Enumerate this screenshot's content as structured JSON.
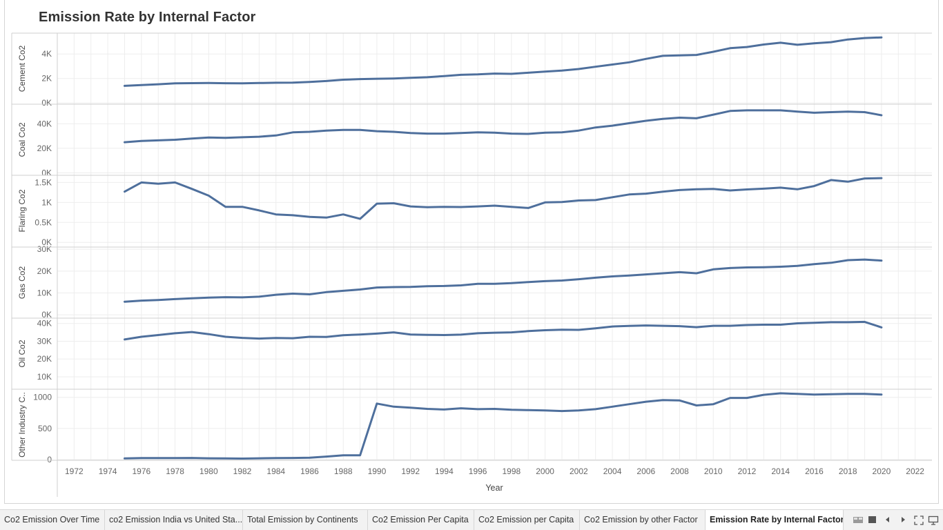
{
  "title": "Emission Rate by Internal Factor",
  "chart_data": {
    "type": "line",
    "xlabel": "Year",
    "x_ticks": [
      "1972",
      "1974",
      "1976",
      "1978",
      "1980",
      "1982",
      "1984",
      "1986",
      "1988",
      "1990",
      "1992",
      "1994",
      "1996",
      "1998",
      "2000",
      "2002",
      "2004",
      "2006",
      "2008",
      "2010",
      "2012",
      "2014",
      "2016",
      "2018",
      "2020",
      "2022"
    ],
    "xlim": [
      1971,
      2023
    ],
    "grid": true,
    "line_color": "#4e6f9c",
    "x": [
      1975,
      1976,
      1977,
      1978,
      1979,
      1980,
      1981,
      1982,
      1983,
      1984,
      1985,
      1986,
      1987,
      1988,
      1989,
      1990,
      1991,
      1992,
      1993,
      1994,
      1995,
      1996,
      1997,
      1998,
      1999,
      2000,
      2001,
      2002,
      2003,
      2004,
      2005,
      2006,
      2007,
      2008,
      2009,
      2010,
      2011,
      2012,
      2013,
      2014,
      2015,
      2016,
      2017,
      2018,
      2019,
      2020
    ],
    "panels": [
      {
        "ylabel": "Cement Co2",
        "ylim": [
          -100,
          5700
        ],
        "ticks": [
          {
            "v": 0,
            "t": "0K"
          },
          {
            "v": 2000,
            "t": "2K"
          },
          {
            "v": 4000,
            "t": "4K"
          }
        ],
        "values": [
          1400,
          1460,
          1530,
          1600,
          1620,
          1630,
          1610,
          1600,
          1630,
          1650,
          1660,
          1720,
          1790,
          1900,
          1950,
          1980,
          2000,
          2050,
          2100,
          2200,
          2300,
          2330,
          2400,
          2380,
          2470,
          2560,
          2650,
          2770,
          2960,
          3140,
          3320,
          3600,
          3850,
          3880,
          3920,
          4180,
          4470,
          4570,
          4770,
          4920,
          4750,
          4870,
          4960,
          5180,
          5300,
          5350
        ]
      },
      {
        "ylabel": "Coal Co2",
        "ylim": [
          -2000,
          56000
        ],
        "ticks": [
          {
            "v": 0,
            "t": "0K"
          },
          {
            "v": 20000,
            "t": "20K"
          },
          {
            "v": 40000,
            "t": "40K"
          }
        ],
        "values": [
          25000,
          26000,
          26500,
          27000,
          28000,
          28800,
          28500,
          29000,
          29500,
          30500,
          33000,
          33500,
          34500,
          35000,
          35000,
          34000,
          33500,
          32500,
          32000,
          32000,
          32500,
          33000,
          32800,
          32000,
          31800,
          32800,
          33000,
          34500,
          37000,
          38500,
          40500,
          42500,
          44000,
          45000,
          44500,
          47500,
          50500,
          51000,
          51000,
          51000,
          50000,
          49000,
          49500,
          50000,
          49500,
          47000
        ]
      },
      {
        "ylabel": "Flaring Co2",
        "ylim": [
          -100,
          1680
        ],
        "ticks": [
          {
            "v": 0,
            "t": "0K"
          },
          {
            "v": 500,
            "t": "0.5K"
          },
          {
            "v": 1000,
            "t": "1K"
          },
          {
            "v": 1500,
            "t": "1.5K"
          }
        ],
        "values": [
          1270,
          1500,
          1470,
          1500,
          1340,
          1170,
          890,
          890,
          800,
          700,
          680,
          640,
          620,
          700,
          590,
          970,
          980,
          900,
          880,
          890,
          885,
          900,
          920,
          890,
          860,
          1000,
          1010,
          1050,
          1060,
          1130,
          1200,
          1220,
          1270,
          1310,
          1330,
          1340,
          1300,
          1325,
          1345,
          1370,
          1330,
          1410,
          1560,
          1520,
          1600,
          1610
        ]
      },
      {
        "ylabel": "Gas Co2",
        "ylim": [
          -1500,
          31000
        ],
        "ticks": [
          {
            "v": 0,
            "t": "0K"
          },
          {
            "v": 10000,
            "t": "10K"
          },
          {
            "v": 20000,
            "t": "20K"
          },
          {
            "v": 30000,
            "t": "30K"
          }
        ],
        "values": [
          6000,
          6500,
          6800,
          7200,
          7600,
          7900,
          8100,
          8000,
          8300,
          9200,
          9700,
          9400,
          10400,
          11000,
          11600,
          12500,
          12700,
          12800,
          13100,
          13200,
          13500,
          14200,
          14200,
          14500,
          15000,
          15400,
          15700,
          16300,
          17000,
          17600,
          18000,
          18500,
          19000,
          19500,
          19000,
          20800,
          21400,
          21700,
          21800,
          22000,
          22400,
          23200,
          23800,
          25000,
          25300,
          24800
        ]
      },
      {
        "ylabel": "Oil Co2",
        "ylim": [
          3000,
          43000
        ],
        "ticks": [
          {
            "v": 10000,
            "t": "10K"
          },
          {
            "v": 20000,
            "t": "20K"
          },
          {
            "v": 30000,
            "t": "30K"
          },
          {
            "v": 40000,
            "t": "40K"
          }
        ],
        "values": [
          31000,
          32500,
          33500,
          34500,
          35200,
          34000,
          32500,
          31900,
          31500,
          31800,
          31700,
          32500,
          32400,
          33400,
          33800,
          34300,
          35000,
          33800,
          33600,
          33500,
          33700,
          34500,
          34800,
          35000,
          35700,
          36200,
          36500,
          36400,
          37300,
          38300,
          38600,
          38900,
          38700,
          38500,
          37900,
          38700,
          38700,
          39100,
          39300,
          39300,
          40100,
          40400,
          40700,
          40700,
          40900,
          37800
        ]
      },
      {
        "ylabel": "Other Industry C..",
        "ylim": [
          -10,
          1130
        ],
        "ticks": [
          {
            "v": 0,
            "t": "0"
          },
          {
            "v": 500,
            "t": "500"
          },
          {
            "v": 1000,
            "t": "1000"
          }
        ],
        "values": [
          20,
          25,
          25,
          27,
          28,
          22,
          20,
          18,
          22,
          25,
          28,
          32,
          50,
          70,
          70,
          900,
          850,
          835,
          815,
          805,
          825,
          810,
          815,
          800,
          795,
          790,
          780,
          790,
          810,
          850,
          890,
          930,
          955,
          950,
          870,
          890,
          990,
          990,
          1040,
          1065,
          1055,
          1045,
          1050,
          1055,
          1055,
          1045
        ]
      }
    ]
  },
  "tabs": [
    {
      "label": "Co2 Emission Over Time"
    },
    {
      "label": "co2 Emission India vs United Sta..."
    },
    {
      "label": "Total Emission by Continents"
    },
    {
      "label": "Co2 Emission Per Capita"
    },
    {
      "label": "Co2 Emission per Capita"
    },
    {
      "label": "Co2 Emission by other Factor"
    },
    {
      "label": "Emission Rate by Internal Factor"
    }
  ],
  "tab_controls": [
    {
      "icon": "grid-view-icon"
    },
    {
      "icon": "sheet-view-icon"
    },
    {
      "icon": "prev-tab-icon"
    },
    {
      "icon": "next-tab-icon"
    },
    {
      "icon": "fit-screen-icon"
    },
    {
      "icon": "presentation-icon"
    }
  ]
}
